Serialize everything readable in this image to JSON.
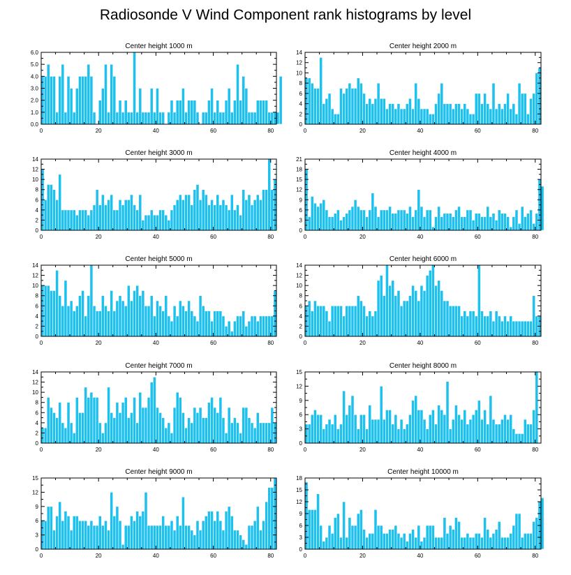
{
  "title": "Radiosonde V Wind Component rank histograms by level",
  "colors": {
    "bar": "#1ec1ee",
    "bar_edge": "#ffffff",
    "axis": "#000000"
  },
  "chart_data": [
    {
      "type": "bar",
      "title": "Center height 1000 m",
      "xlim": [
        0,
        82
      ],
      "ylim": [
        0,
        6
      ],
      "xticks": [
        0,
        20,
        40,
        60,
        80
      ],
      "yticks": [
        0,
        1,
        2,
        3,
        4,
        5,
        6
      ],
      "ytick_labels": [
        "0.0",
        "1.0",
        "2.0",
        "3.0",
        "4.0",
        "5.0",
        "6.0"
      ],
      "values": [
        4,
        4,
        5,
        4,
        4,
        1,
        4,
        5,
        1,
        4,
        3,
        1,
        3,
        4,
        4,
        4,
        5,
        4,
        1,
        0,
        2,
        3,
        5,
        1,
        5,
        4,
        1,
        2,
        1,
        2,
        1,
        1,
        6,
        1,
        3,
        1,
        1,
        1,
        3,
        1,
        3,
        1,
        1,
        0,
        1,
        2,
        1,
        2,
        2,
        3,
        1,
        2,
        2,
        2,
        1,
        0,
        1,
        1,
        2,
        3,
        1,
        2,
        1,
        1,
        2,
        3,
        1,
        2,
        5,
        2,
        4,
        3,
        1,
        1,
        1,
        2,
        2,
        2,
        2,
        1,
        1,
        1,
        1,
        4
      ]
    },
    {
      "type": "bar",
      "title": "Center height 2000 m",
      "xlim": [
        0,
        82
      ],
      "ylim": [
        0,
        14
      ],
      "xticks": [
        0,
        20,
        40,
        60,
        80
      ],
      "yticks": [
        0,
        2,
        4,
        6,
        8,
        10,
        12,
        14
      ],
      "ytick_labels": [
        "0",
        "2",
        "4",
        "6",
        "8",
        "10",
        "12",
        "14"
      ],
      "values": [
        9,
        9,
        8,
        7,
        7,
        13,
        4,
        5,
        6,
        3,
        2,
        2,
        7,
        6,
        7,
        8,
        7,
        7,
        9,
        8,
        6,
        4,
        5,
        4,
        5,
        8,
        5,
        5,
        3,
        4,
        4,
        3,
        4,
        3,
        3,
        4,
        5,
        3,
        8,
        5,
        3,
        3,
        3,
        2,
        2,
        4,
        6,
        8,
        4,
        4,
        4,
        3,
        4,
        4,
        3,
        4,
        3,
        2,
        2,
        6,
        6,
        4,
        6,
        4,
        3,
        8,
        3,
        4,
        3,
        4,
        6,
        3,
        4,
        2,
        8,
        6,
        6,
        2,
        5,
        6,
        10,
        11
      ]
    },
    {
      "type": "bar",
      "title": "Center height 3000 m",
      "xlim": [
        0,
        82
      ],
      "ylim": [
        0,
        14
      ],
      "xticks": [
        0,
        20,
        40,
        60,
        80
      ],
      "yticks": [
        0,
        2,
        4,
        6,
        8,
        10,
        12,
        14
      ],
      "ytick_labels": [
        "0",
        "2",
        "4",
        "6",
        "8",
        "10",
        "12",
        "14"
      ],
      "values": [
        12,
        6,
        9,
        9,
        8,
        6,
        11,
        4,
        4,
        4,
        4,
        4,
        3,
        4,
        4,
        4,
        3,
        4,
        5,
        8,
        5,
        7,
        5,
        6,
        7,
        4,
        4,
        6,
        5,
        6,
        6,
        7,
        5,
        4,
        7,
        2,
        3,
        3,
        4,
        3,
        3,
        4,
        4,
        3,
        2,
        4,
        5,
        6,
        7,
        6,
        7,
        7,
        5,
        8,
        9,
        6,
        8,
        7,
        5,
        6,
        5,
        7,
        5,
        6,
        5,
        4,
        7,
        4,
        5,
        3,
        8,
        6,
        7,
        5,
        6,
        7,
        6,
        8,
        8,
        14,
        8,
        10
      ]
    },
    {
      "type": "bar",
      "title": "Center height 4000 m",
      "xlim": [
        0,
        82
      ],
      "ylim": [
        0,
        21
      ],
      "xticks": [
        0,
        20,
        40,
        60,
        80
      ],
      "yticks": [
        0,
        3,
        6,
        9,
        12,
        15,
        18,
        21
      ],
      "ytick_labels": [
        "0",
        "3",
        "6",
        "9",
        "12",
        "15",
        "18",
        "21"
      ],
      "values": [
        18,
        4,
        10,
        8,
        7,
        8,
        9,
        6,
        4,
        4,
        5,
        6,
        3,
        4,
        5,
        6,
        7,
        9,
        7,
        6,
        6,
        4,
        6,
        11,
        7,
        4,
        6,
        6,
        6,
        7,
        5,
        5,
        6,
        6,
        6,
        5,
        7,
        4,
        6,
        12,
        7,
        4,
        6,
        6,
        1,
        4,
        7,
        4,
        5,
        5,
        5,
        4,
        6,
        7,
        4,
        4,
        6,
        6,
        3,
        5,
        5,
        4,
        4,
        7,
        4,
        5,
        3,
        6,
        5,
        5,
        4,
        1,
        4,
        6,
        2,
        7,
        4,
        5,
        6,
        2,
        5,
        15,
        13
      ]
    },
    {
      "type": "bar",
      "title": "Center height 5000 m",
      "xlim": [
        0,
        82
      ],
      "ylim": [
        0,
        14
      ],
      "xticks": [
        0,
        20,
        40,
        60,
        80
      ],
      "yticks": [
        0,
        2,
        4,
        6,
        8,
        10,
        12,
        14
      ],
      "ytick_labels": [
        "0",
        "2",
        "4",
        "6",
        "8",
        "10",
        "12",
        "14"
      ],
      "values": [
        10,
        10,
        10,
        9,
        9,
        13,
        8,
        6,
        11,
        6,
        7,
        5,
        6,
        8,
        9,
        4,
        8,
        14,
        6,
        5,
        5,
        8,
        6,
        5,
        9,
        5,
        7,
        8,
        7,
        6,
        10,
        7,
        9,
        10,
        8,
        9,
        6,
        6,
        8,
        4,
        7,
        6,
        5,
        8,
        4,
        3,
        6,
        4,
        7,
        6,
        5,
        7,
        5,
        4,
        3,
        8,
        6,
        5,
        5,
        3,
        5,
        5,
        5,
        4,
        2,
        3,
        1,
        3,
        4,
        4,
        5,
        2,
        3,
        4,
        4,
        3,
        4,
        4,
        4,
        4,
        4,
        9
      ]
    },
    {
      "type": "bar",
      "title": "Center height 6000 m",
      "xlim": [
        0,
        82
      ],
      "ylim": [
        0,
        14
      ],
      "xticks": [
        0,
        20,
        40,
        60,
        80
      ],
      "yticks": [
        0,
        2,
        4,
        6,
        8,
        10,
        12,
        14
      ],
      "ytick_labels": [
        "0",
        "2",
        "4",
        "6",
        "8",
        "10",
        "12",
        "14"
      ],
      "values": [
        6,
        7,
        5,
        7,
        6,
        6,
        6,
        5,
        3,
        6,
        6,
        6,
        6,
        4,
        6,
        6,
        6,
        6,
        8,
        7,
        6,
        4,
        5,
        4,
        5,
        11,
        12,
        8,
        14,
        10,
        11,
        8,
        9,
        6,
        7,
        7,
        8,
        10,
        9,
        7,
        10,
        9,
        12,
        13,
        14,
        10,
        11,
        9,
        7,
        7,
        6,
        6,
        6,
        6,
        4,
        5,
        4,
        5,
        5,
        4,
        14,
        5,
        4,
        4,
        5,
        3,
        5,
        4,
        3,
        4,
        3,
        4,
        3,
        3,
        3,
        3,
        3,
        3,
        3,
        8,
        4,
        4
      ]
    },
    {
      "type": "bar",
      "title": "Center height 7000 m",
      "xlim": [
        0,
        82
      ],
      "ylim": [
        0,
        14
      ],
      "xticks": [
        0,
        20,
        40,
        60,
        80
      ],
      "yticks": [
        0,
        2,
        4,
        6,
        8,
        10,
        12,
        14
      ],
      "ytick_labels": [
        "0",
        "2",
        "4",
        "6",
        "8",
        "10",
        "12",
        "14"
      ],
      "values": [
        3,
        3,
        9,
        7,
        6,
        5,
        8,
        4,
        3,
        8,
        4,
        2,
        9,
        6,
        6,
        11,
        9,
        10,
        9,
        9,
        4,
        2,
        4,
        11,
        6,
        5,
        8,
        6,
        8,
        9,
        5,
        6,
        9,
        4,
        10,
        7,
        7,
        9,
        12,
        13,
        7,
        6,
        5,
        3,
        4,
        2,
        7,
        10,
        9,
        6,
        3,
        5,
        4,
        7,
        6,
        7,
        5,
        5,
        8,
        9,
        7,
        6,
        9,
        5,
        2,
        7,
        4,
        5,
        4,
        2,
        7,
        7,
        5,
        4,
        3,
        6,
        4,
        4,
        4,
        4,
        7,
        4
      ]
    },
    {
      "type": "bar",
      "title": "Center height 8000 m",
      "xlim": [
        0,
        82
      ],
      "ylim": [
        0,
        15
      ],
      "xticks": [
        0,
        20,
        40,
        60,
        80
      ],
      "yticks": [
        0,
        3,
        6,
        9,
        12,
        15
      ],
      "ytick_labels": [
        "0",
        "3",
        "6",
        "9",
        "12",
        "15"
      ],
      "values": [
        4,
        4,
        6,
        7,
        6,
        6,
        3,
        4,
        5,
        4,
        6,
        3,
        4,
        11,
        6,
        8,
        10,
        6,
        3,
        6,
        6,
        3,
        8,
        5,
        5,
        5,
        12,
        5,
        7,
        7,
        4,
        6,
        3,
        5,
        3,
        4,
        6,
        9,
        10,
        7,
        7,
        5,
        3,
        6,
        7,
        4,
        8,
        7,
        6,
        13,
        3,
        5,
        8,
        6,
        5,
        7,
        4,
        5,
        6,
        7,
        9,
        5,
        7,
        4,
        10,
        5,
        4,
        4,
        5,
        6,
        5,
        6,
        3,
        2,
        2,
        2,
        5,
        4,
        4,
        7,
        15
      ]
    },
    {
      "type": "bar",
      "title": "Center height 9000 m",
      "xlim": [
        0,
        82
      ],
      "ylim": [
        0,
        15
      ],
      "xticks": [
        0,
        20,
        40,
        60,
        80
      ],
      "yticks": [
        0,
        3,
        6,
        9,
        12,
        15
      ],
      "ytick_labels": [
        "0",
        "3",
        "6",
        "9",
        "12",
        "15"
      ],
      "values": [
        6,
        6,
        9,
        9,
        4,
        7,
        10,
        6,
        8,
        7,
        4,
        7,
        7,
        6,
        6,
        6,
        5,
        6,
        5,
        5,
        7,
        5,
        6,
        4,
        12,
        7,
        9,
        6,
        1,
        5,
        5,
        7,
        6,
        8,
        7,
        8,
        12,
        5,
        5,
        5,
        5,
        5,
        7,
        5,
        5,
        6,
        4,
        7,
        5,
        11,
        5,
        5,
        4,
        3,
        6,
        4,
        6,
        7,
        8,
        8,
        6,
        8,
        6,
        4,
        8,
        9,
        7,
        4,
        4,
        3,
        2,
        1,
        5,
        5,
        6,
        9,
        4,
        6,
        10,
        13,
        13,
        15
      ]
    },
    {
      "type": "bar",
      "title": "Center height 10000 m",
      "xlim": [
        0,
        82
      ],
      "ylim": [
        0,
        18
      ],
      "xticks": [
        0,
        20,
        40,
        60,
        80
      ],
      "yticks": [
        0,
        3,
        6,
        9,
        12,
        15,
        18
      ],
      "ytick_labels": [
        "0",
        "3",
        "6",
        "9",
        "12",
        "15",
        "18"
      ],
      "values": [
        17,
        10,
        10,
        10,
        14,
        6,
        2,
        3,
        6,
        4,
        8,
        9,
        3,
        12,
        3,
        8,
        6,
        6,
        9,
        10,
        5,
        3,
        4,
        4,
        10,
        6,
        6,
        4,
        4,
        5,
        5,
        6,
        4,
        3,
        4,
        2,
        4,
        5,
        3,
        6,
        2,
        3,
        6,
        6,
        6,
        3,
        3,
        3,
        8,
        4,
        6,
        5,
        8,
        7,
        3,
        3,
        4,
        3,
        3,
        4,
        4,
        3,
        8,
        5,
        3,
        4,
        5,
        7,
        3,
        3,
        3,
        4,
        6,
        9,
        9,
        3,
        4,
        4,
        4,
        7,
        8,
        12,
        13
      ]
    }
  ]
}
